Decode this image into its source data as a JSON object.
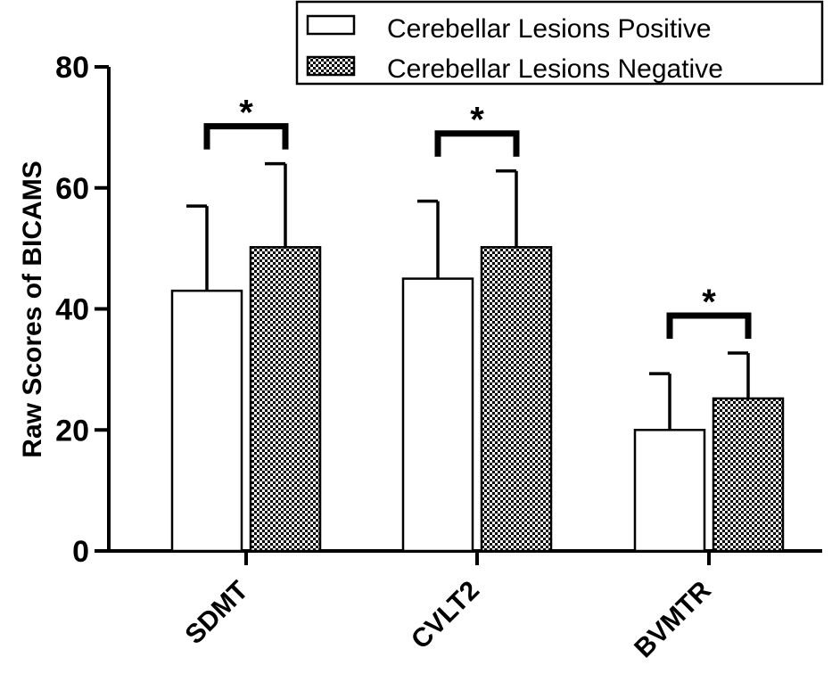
{
  "chart_data": {
    "type": "bar",
    "ylabel": "Raw Scores of BICAMS",
    "xlabel": "",
    "ylim": [
      0,
      80
    ],
    "yticks": [
      0,
      20,
      40,
      60,
      80
    ],
    "categories": [
      "SDMT",
      "CVLT2",
      "BVMTR"
    ],
    "series": [
      {
        "name": "Cerebellar Lesions Positive",
        "fill": "plain",
        "values": [
          43,
          45,
          20
        ],
        "errors": [
          14,
          12.8,
          9.3
        ]
      },
      {
        "name": "Cerebellar Lesions Negative",
        "fill": "checkered",
        "values": [
          50.2,
          50.2,
          25.2
        ],
        "errors": [
          13.8,
          12.6,
          7.5
        ]
      }
    ],
    "significance": [
      {
        "category": "SDMT",
        "label": "*"
      },
      {
        "category": "CVLT2",
        "label": "*"
      },
      {
        "category": "BVMTR",
        "label": "*"
      }
    ],
    "legend_position": "top-right",
    "grid": false,
    "colors": {
      "bar_fill": "#ffffff",
      "pattern_dark": "#000000",
      "pattern_light": "#ffffff",
      "stroke": "#000000"
    }
  }
}
